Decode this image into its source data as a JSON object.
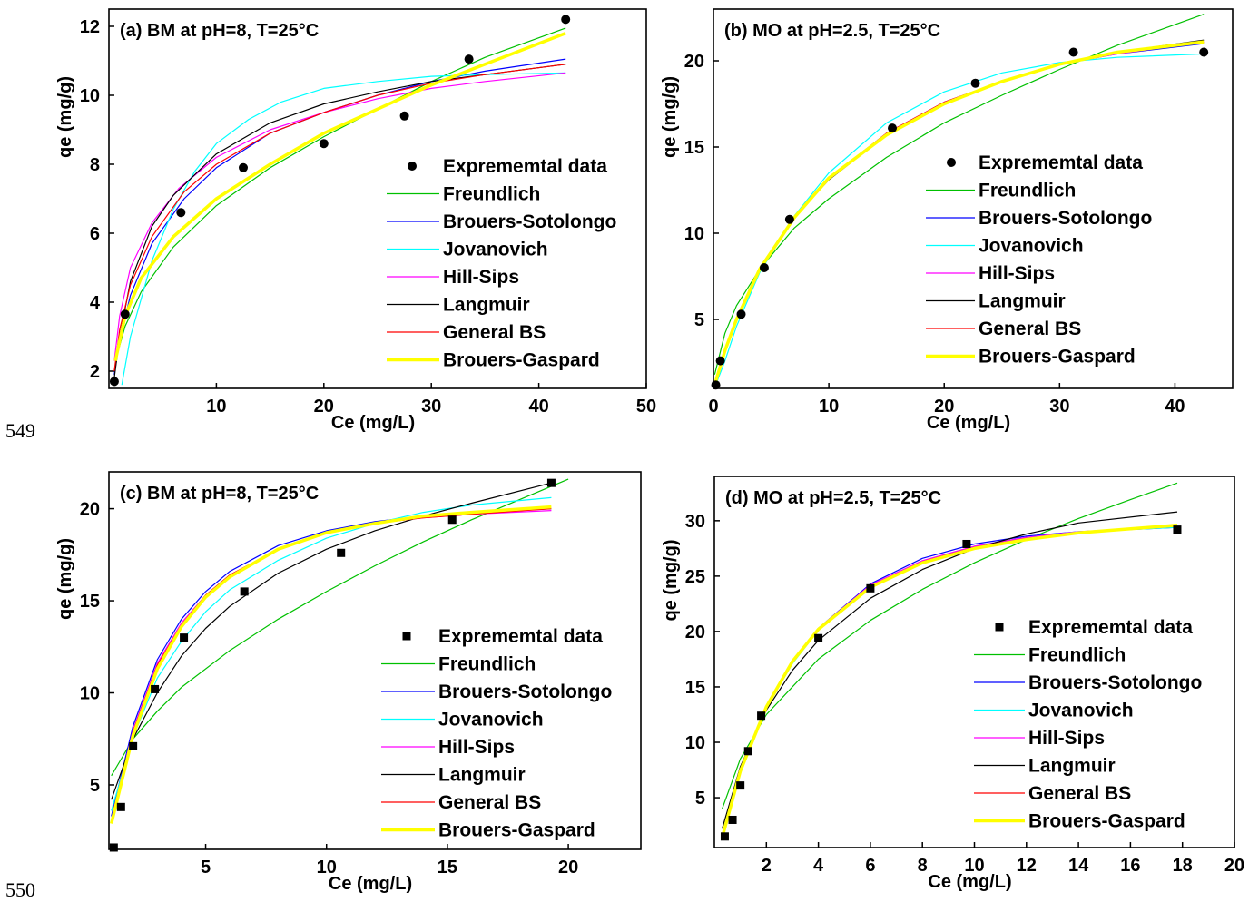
{
  "line_numbers": [
    "549",
    "550"
  ],
  "chart_data": [
    {
      "type": "line",
      "title": "(a) BM at pH=8, T=25°C",
      "xlabel": "Ce (mg/L)",
      "ylabel": "qe (mg/g)",
      "xlim": [
        0,
        50
      ],
      "ylim": [
        1.5,
        12.5
      ],
      "xticks": [
        "10",
        "20",
        "30",
        "40",
        "50"
      ],
      "yticks": [
        "2",
        "4",
        "6",
        "8",
        "10",
        "12"
      ],
      "legend_position": "bottom-right",
      "scatter": {
        "name": "Exprememtal data",
        "marker": "circle",
        "x": [
          0.5,
          1.5,
          6.7,
          12.5,
          20.0,
          27.5,
          33.5,
          42.5
        ],
        "y": [
          1.7,
          3.65,
          6.6,
          7.9,
          8.6,
          9.4,
          11.05,
          12.2
        ]
      },
      "series": [
        {
          "name": "Freundlich",
          "color": "#00c000",
          "width": 1.2,
          "x": [
            0.6,
            1.5,
            3,
            6,
            10,
            15,
            20,
            25,
            30,
            35,
            42.5
          ],
          "y": [
            2.3,
            3.3,
            4.3,
            5.6,
            6.8,
            7.9,
            8.8,
            9.6,
            10.4,
            11.1,
            11.95
          ]
        },
        {
          "name": "Brouers-Sotolongo",
          "color": "#0000ff",
          "width": 1.2,
          "x": [
            0.5,
            1,
            2,
            4,
            7,
            10,
            15,
            20,
            25,
            30,
            35,
            42.5
          ],
          "y": [
            1.9,
            2.9,
            4.2,
            5.7,
            7.0,
            7.9,
            8.9,
            9.5,
            10.0,
            10.4,
            10.7,
            11.05
          ]
        },
        {
          "name": "Jovanovich",
          "color": "#00ffff",
          "width": 1.2,
          "x": [
            1.2,
            2,
            4,
            6,
            8,
            10,
            13,
            16,
            20,
            25,
            30,
            35,
            42.5
          ],
          "y": [
            1.6,
            3.0,
            5.2,
            6.7,
            7.8,
            8.6,
            9.3,
            9.8,
            10.2,
            10.4,
            10.55,
            10.6,
            10.65
          ]
        },
        {
          "name": "Hill-Sips",
          "color": "#ff00ff",
          "width": 1.2,
          "x": [
            0.5,
            1,
            2,
            4,
            6.5,
            10,
            15,
            20,
            25,
            30,
            35,
            42.5
          ],
          "y": [
            2.3,
            3.6,
            5.0,
            6.3,
            7.3,
            8.2,
            9.0,
            9.5,
            9.9,
            10.2,
            10.4,
            10.65
          ]
        },
        {
          "name": "Langmuir",
          "color": "#000000",
          "width": 1.2,
          "x": [
            0.5,
            1,
            2,
            4,
            6,
            10,
            15,
            20,
            25,
            30,
            35,
            42.5
          ],
          "y": [
            1.8,
            3.0,
            4.6,
            6.2,
            7.1,
            8.3,
            9.2,
            9.75,
            10.1,
            10.4,
            10.6,
            10.9
          ]
        },
        {
          "name": "General BS",
          "color": "#ff0000",
          "width": 1.2,
          "x": [
            0.5,
            1,
            2,
            4,
            7,
            10,
            15,
            20,
            25,
            30,
            35,
            42.5
          ],
          "y": [
            2.0,
            3.2,
            4.5,
            5.9,
            7.2,
            8.0,
            8.9,
            9.5,
            10.0,
            10.35,
            10.6,
            10.9
          ]
        },
        {
          "name": "Brouers-Gaspard",
          "color": "#ffff00",
          "width": 3.5,
          "x": [
            0.6,
            1.5,
            3,
            6,
            10,
            15,
            20,
            25,
            30,
            35,
            42.5
          ],
          "y": [
            2.3,
            3.6,
            4.7,
            5.9,
            7.0,
            8.0,
            8.9,
            9.6,
            10.3,
            10.9,
            11.8
          ]
        }
      ]
    },
    {
      "type": "line",
      "title": "(b) MO at pH=2.5, T=25°C",
      "xlabel": "Ce (mg/L)",
      "ylabel": "qe (mg/g)",
      "xlim": [
        0,
        45
      ],
      "ylim": [
        1,
        23
      ],
      "xticks": [
        "0",
        "10",
        "20",
        "30",
        "40"
      ],
      "yticks": [
        "5",
        "10",
        "15",
        "20"
      ],
      "legend_position": "bottom-right",
      "scatter": {
        "name": "Exprememtal data",
        "marker": "circle",
        "x": [
          0.2,
          0.6,
          2.4,
          4.4,
          6.6,
          15.5,
          22.7,
          31.2,
          42.5
        ],
        "y": [
          1.2,
          2.6,
          5.3,
          8.0,
          10.8,
          16.1,
          18.7,
          20.5,
          20.5
        ]
      },
      "series": [
        {
          "name": "Freundlich",
          "color": "#00c000",
          "width": 1.2,
          "x": [
            0.1,
            1,
            2,
            4,
            7,
            10,
            15,
            20,
            25,
            30,
            35,
            42.5
          ],
          "y": [
            1.8,
            4.2,
            5.8,
            7.9,
            10.3,
            12.0,
            14.4,
            16.4,
            18.0,
            19.5,
            20.9,
            22.7
          ]
        },
        {
          "name": "Brouers-Sotolongo",
          "color": "#0000ff",
          "width": 1.2,
          "x": [
            0.2,
            1,
            2,
            4,
            7,
            10,
            15,
            20,
            25,
            30,
            35,
            42.5
          ],
          "y": [
            1.4,
            3.2,
            5.0,
            7.9,
            10.9,
            13.2,
            15.8,
            17.6,
            18.8,
            19.8,
            20.4,
            21.0
          ]
        },
        {
          "name": "Jovanovich",
          "color": "#00ffff",
          "width": 1.2,
          "x": [
            0.2,
            1,
            2,
            4,
            7,
            10,
            15,
            20,
            25,
            30,
            35,
            42.5
          ],
          "y": [
            1.2,
            2.6,
            4.6,
            7.7,
            11.0,
            13.5,
            16.4,
            18.2,
            19.3,
            19.9,
            20.2,
            20.4
          ]
        },
        {
          "name": "Hill-Sips",
          "color": "#ff00ff",
          "width": 1.2,
          "x": [
            0.2,
            1,
            2,
            4,
            7,
            10,
            15,
            20,
            25,
            30,
            35,
            42.5
          ],
          "y": [
            1.4,
            3.2,
            5.0,
            7.9,
            10.9,
            13.2,
            15.8,
            17.6,
            18.8,
            19.8,
            20.4,
            21.1
          ]
        },
        {
          "name": "Langmuir",
          "color": "#000000",
          "width": 1.2,
          "x": [
            0.2,
            1,
            2,
            4,
            7,
            10,
            15,
            20,
            25,
            30,
            35,
            42.5
          ],
          "y": [
            1.5,
            3.3,
            5.1,
            8.0,
            10.9,
            13.1,
            15.7,
            17.5,
            18.8,
            19.8,
            20.5,
            21.2
          ]
        },
        {
          "name": "General BS",
          "color": "#ff0000",
          "width": 1.2,
          "x": [
            0.2,
            1,
            2,
            4,
            7,
            10,
            15,
            20,
            25,
            30,
            35,
            42.5
          ],
          "y": [
            1.4,
            3.2,
            5.0,
            7.9,
            10.9,
            13.2,
            15.8,
            17.6,
            18.8,
            19.8,
            20.5,
            21.1
          ]
        },
        {
          "name": "Brouers-Gaspard",
          "color": "#ffff00",
          "width": 3.5,
          "x": [
            0.2,
            1,
            2,
            4,
            7,
            10,
            15,
            20,
            25,
            30,
            35,
            42.5
          ],
          "y": [
            1.4,
            3.2,
            5.0,
            7.9,
            10.9,
            13.2,
            15.7,
            17.5,
            18.8,
            19.8,
            20.5,
            21.1
          ]
        }
      ]
    },
    {
      "type": "line",
      "title": "(c) BM at pH=8, T=25°C",
      "xlabel": "Ce (mg/L)",
      "ylabel": "qe (mg/g)",
      "xlim": [
        1,
        23
      ],
      "ylim": [
        1.5,
        22
      ],
      "xticks": [
        "5",
        "10",
        "15",
        "20"
      ],
      "yticks": [
        "5",
        "10",
        "15",
        "20"
      ],
      "legend_position": "bottom-right",
      "scatter": {
        "name": "Exprememtal data",
        "marker": "square",
        "x": [
          1.2,
          1.5,
          2.0,
          2.9,
          4.1,
          6.6,
          10.6,
          15.2,
          19.3
        ],
        "y": [
          1.6,
          3.8,
          7.1,
          10.2,
          13.0,
          15.5,
          17.6,
          19.4,
          21.4
        ]
      },
      "series": [
        {
          "name": "Freundlich",
          "color": "#00c000",
          "width": 1.2,
          "x": [
            1.1,
            2,
            3,
            4,
            6,
            8,
            10,
            12,
            14,
            16,
            18,
            20
          ],
          "y": [
            5.5,
            7.5,
            9.0,
            10.3,
            12.3,
            14.0,
            15.5,
            16.9,
            18.2,
            19.4,
            20.5,
            21.6
          ]
        },
        {
          "name": "Brouers-Sotolongo",
          "color": "#0000ff",
          "width": 1.2,
          "x": [
            1.1,
            2,
            3,
            4,
            5,
            6,
            8,
            10,
            12,
            14,
            16,
            19.3
          ],
          "y": [
            3.3,
            8.2,
            11.8,
            14.0,
            15.5,
            16.6,
            18.0,
            18.8,
            19.3,
            19.6,
            19.8,
            20.0
          ]
        },
        {
          "name": "Jovanovich",
          "color": "#00ffff",
          "width": 1.2,
          "x": [
            1.1,
            2,
            3,
            4,
            5,
            6,
            8,
            10,
            12,
            14,
            16,
            19.3
          ],
          "y": [
            3.6,
            7.6,
            10.8,
            12.8,
            14.4,
            15.6,
            17.2,
            18.4,
            19.2,
            19.8,
            20.2,
            20.6
          ]
        },
        {
          "name": "Hill-Sips",
          "color": "#ff00ff",
          "width": 1.2,
          "x": [
            1.1,
            2,
            3,
            4,
            5,
            6,
            8,
            10,
            12,
            14,
            16,
            19.3
          ],
          "y": [
            3.1,
            8.0,
            11.6,
            13.8,
            15.3,
            16.4,
            17.8,
            18.7,
            19.2,
            19.5,
            19.7,
            19.9
          ]
        },
        {
          "name": "Langmuir",
          "color": "#000000",
          "width": 1.2,
          "x": [
            1.1,
            2,
            3,
            4,
            5,
            6,
            8,
            10,
            12,
            14,
            16,
            19.3
          ],
          "y": [
            4.2,
            7.5,
            10.0,
            12.0,
            13.5,
            14.7,
            16.5,
            17.8,
            18.8,
            19.6,
            20.3,
            21.4
          ]
        },
        {
          "name": "General BS",
          "color": "#ff0000",
          "width": 1.2,
          "x": [
            1.1,
            2,
            3,
            4,
            5,
            6,
            8,
            10,
            12,
            14,
            16,
            19.3
          ],
          "y": [
            3.0,
            7.9,
            11.5,
            13.7,
            15.3,
            16.4,
            17.8,
            18.7,
            19.2,
            19.5,
            19.7,
            20.0
          ]
        },
        {
          "name": "Brouers-Gaspard",
          "color": "#ffff00",
          "width": 3.5,
          "x": [
            1.1,
            2,
            3,
            4,
            5,
            6,
            8,
            10,
            12,
            14,
            16,
            19.3
          ],
          "y": [
            2.9,
            7.7,
            11.3,
            13.6,
            15.2,
            16.3,
            17.8,
            18.7,
            19.2,
            19.6,
            19.8,
            20.1
          ]
        }
      ]
    },
    {
      "type": "line",
      "title": "(d) MO at pH=2.5, T=25°C",
      "xlabel": "Ce (mg/L)",
      "ylabel": "qe (mg/g)",
      "xlim": [
        0,
        20
      ],
      "ylim": [
        0.5,
        34
      ],
      "xticks": [
        "2",
        "4",
        "6",
        "8",
        "10",
        "12",
        "14",
        "16",
        "18",
        "20"
      ],
      "yticks": [
        "5",
        "10",
        "15",
        "20",
        "25",
        "30"
      ],
      "legend_position": "bottom-right",
      "scatter": {
        "name": "Exprememtal data",
        "marker": "square",
        "x": [
          0.4,
          0.7,
          1.0,
          1.3,
          1.8,
          4.0,
          6.0,
          9.7,
          17.8
        ],
        "y": [
          1.5,
          3.0,
          6.1,
          9.2,
          12.4,
          19.4,
          23.9,
          27.9,
          29.2
        ]
      },
      "series": [
        {
          "name": "Freundlich",
          "color": "#00c000",
          "width": 1.2,
          "x": [
            0.3,
            1,
            2,
            4,
            6,
            8,
            10,
            12,
            14,
            16,
            17.8
          ],
          "y": [
            4.0,
            8.5,
            12.5,
            17.5,
            21.0,
            23.8,
            26.2,
            28.3,
            30.2,
            31.9,
            33.4
          ]
        },
        {
          "name": "Brouers-Sotolongo",
          "color": "#0000ff",
          "width": 1.2,
          "x": [
            0.3,
            1,
            2,
            3,
            4,
            6,
            8,
            10,
            12,
            14,
            17.8
          ],
          "y": [
            1.5,
            7.5,
            13.2,
            17.3,
            20.3,
            24.3,
            26.6,
            27.9,
            28.6,
            29.0,
            29.4
          ]
        },
        {
          "name": "Jovanovich",
          "color": "#00ffff",
          "width": 1.2,
          "x": [
            0.3,
            1,
            2,
            3,
            4,
            6,
            8,
            10,
            12,
            14,
            17.8
          ],
          "y": [
            1.5,
            7.5,
            13.1,
            17.1,
            20.1,
            24.0,
            26.3,
            27.7,
            28.5,
            29.0,
            29.4
          ]
        },
        {
          "name": "Hill-Sips",
          "color": "#ff00ff",
          "width": 1.2,
          "x": [
            0.3,
            1,
            2,
            3,
            4,
            6,
            8,
            10,
            12,
            14,
            17.8
          ],
          "y": [
            1.5,
            7.6,
            13.3,
            17.4,
            20.3,
            24.2,
            26.4,
            27.7,
            28.5,
            29.0,
            29.5
          ]
        },
        {
          "name": "Langmuir",
          "color": "#000000",
          "width": 1.2,
          "x": [
            0.3,
            1,
            2,
            3,
            4,
            6,
            8,
            10,
            12,
            14,
            17.8
          ],
          "y": [
            2.2,
            7.8,
            12.9,
            16.5,
            19.2,
            23.0,
            25.6,
            27.5,
            28.8,
            29.8,
            30.8
          ]
        },
        {
          "name": "General BS",
          "color": "#ff0000",
          "width": 1.2,
          "x": [
            0.3,
            1,
            2,
            3,
            4,
            6,
            8,
            10,
            12,
            14,
            17.8
          ],
          "y": [
            1.5,
            7.6,
            13.3,
            17.3,
            20.2,
            24.1,
            26.3,
            27.6,
            28.4,
            28.9,
            29.5
          ]
        },
        {
          "name": "Brouers-Gaspard",
          "color": "#ffff00",
          "width": 3.5,
          "x": [
            0.3,
            1,
            2,
            3,
            4,
            6,
            8,
            10,
            12,
            14,
            17.8
          ],
          "y": [
            1.4,
            7.4,
            13.2,
            17.3,
            20.2,
            24.0,
            26.2,
            27.5,
            28.3,
            28.9,
            29.6
          ]
        }
      ]
    }
  ]
}
